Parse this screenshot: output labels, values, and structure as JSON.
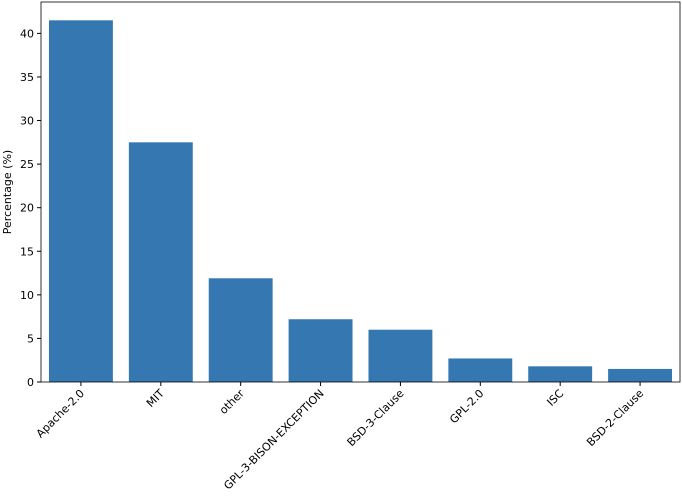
{
  "chart_data": {
    "type": "bar",
    "y_label": "Percentage (%)",
    "categories": [
      "Apache-2.0",
      "MIT",
      "other",
      "GPL-3-BISON-EXCEPTION",
      "BSD-3-Clause",
      "GPL-2.0",
      "ISC",
      "BSD-2-Clause"
    ],
    "values": [
      41.5,
      27.5,
      11.9,
      7.2,
      6.0,
      2.7,
      1.8,
      1.5
    ],
    "color": "#3477b1",
    "ylim": [
      0,
      43.6
    ],
    "yticks": [
      0,
      5,
      10,
      15,
      20,
      25,
      30,
      35,
      40
    ],
    "grid": false
  }
}
